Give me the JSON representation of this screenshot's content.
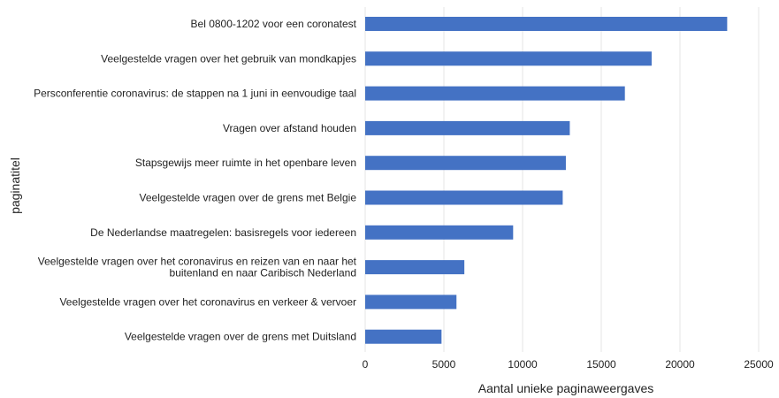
{
  "chart_data": {
    "type": "bar",
    "orientation": "horizontal",
    "xlabel": "Aantal unieke paginaweergaves",
    "ylabel": "paginatitel",
    "xlim": [
      0,
      25000
    ],
    "xticks": [
      "0",
      "5000",
      "10000",
      "15000",
      "20000",
      "25000"
    ],
    "grid": true,
    "bar_color": "#4472c4",
    "categories": [
      "Bel 0800-1202 voor een coronatest",
      "Veelgestelde vragen over het gebruik van mondkapjes",
      "Persconferentie coronavirus: de stappen na 1 juni in eenvoudige taal",
      "Vragen over afstand houden",
      "Stapsgewijs meer ruimte in het openbare leven",
      "Veelgestelde vragen over de grens met Belgie",
      "De Nederlandse maatregelen: basisregels voor iedereen",
      "Veelgestelde vragen over het coronavirus en reizen van en naar het buitenland en naar Caribisch Nederland",
      "Veelgestelde vragen over het coronavirus en verkeer & vervoer",
      "Veelgestelde vragen over de grens met Duitsland"
    ],
    "category_lines": [
      [
        "Bel 0800-1202 voor een coronatest"
      ],
      [
        "Veelgestelde vragen over het gebruik van mondkapjes"
      ],
      [
        "Persconferentie coronavirus: de stappen na 1 juni in eenvoudige taal"
      ],
      [
        "Vragen over afstand houden"
      ],
      [
        "Stapsgewijs meer ruimte in het openbare leven"
      ],
      [
        "Veelgestelde vragen over de grens met Belgie"
      ],
      [
        "De Nederlandse maatregelen: basisregels voor iedereen"
      ],
      [
        "Veelgestelde vragen over het coronavirus en reizen van en naar het",
        "buitenland en naar Caribisch Nederland"
      ],
      [
        "Veelgestelde vragen over het coronavirus en verkeer & vervoer"
      ],
      [
        "Veelgestelde vragen over de grens met Duitsland"
      ]
    ],
    "values": [
      23000,
      18200,
      16500,
      13000,
      12750,
      12550,
      9400,
      6300,
      5800,
      4850
    ]
  }
}
